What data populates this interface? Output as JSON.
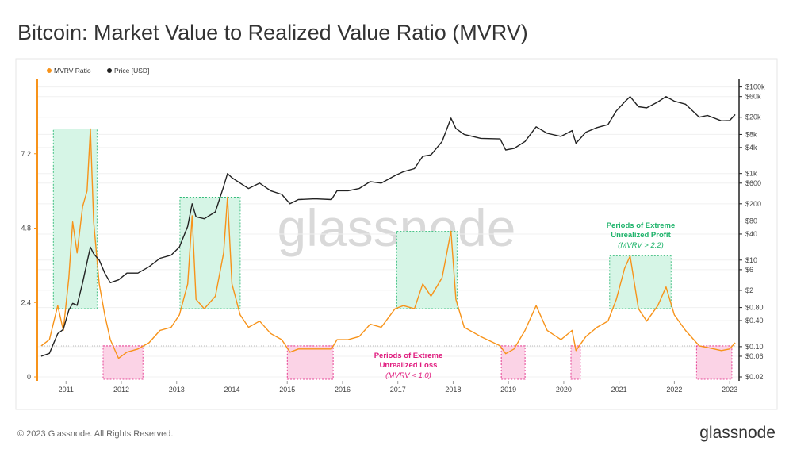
{
  "chart_data": {
    "type": "line",
    "title": "Bitcoin: Market Value to Realized Value Ratio (MVRV)",
    "watermark": "glassnode",
    "footer": "© 2023 Glassnode. All Rights Reserved.",
    "logo": "glassnode",
    "x": [
      2010.55,
      2010.7,
      2010.85,
      2010.95,
      2011.05,
      2011.12,
      2011.2,
      2011.3,
      2011.38,
      2011.44,
      2011.5,
      2011.6,
      2011.7,
      2011.8,
      2011.95,
      2012.1,
      2012.3,
      2012.5,
      2012.7,
      2012.9,
      2013.05,
      2013.2,
      2013.28,
      2013.35,
      2013.5,
      2013.7,
      2013.85,
      2013.92,
      2014.0,
      2014.15,
      2014.3,
      2014.5,
      2014.7,
      2014.9,
      2015.05,
      2015.2,
      2015.5,
      2015.8,
      2015.9,
      2016.1,
      2016.3,
      2016.5,
      2016.7,
      2016.95,
      2017.1,
      2017.3,
      2017.45,
      2017.6,
      2017.8,
      2017.96,
      2018.05,
      2018.2,
      2018.5,
      2018.85,
      2018.95,
      2019.1,
      2019.3,
      2019.5,
      2019.7,
      2019.95,
      2020.15,
      2020.22,
      2020.4,
      2020.6,
      2020.8,
      2020.95,
      2021.1,
      2021.2,
      2021.35,
      2021.5,
      2021.7,
      2021.85,
      2022.0,
      2022.2,
      2022.45,
      2022.6,
      2022.85,
      2023.0,
      2023.1
    ],
    "series": [
      {
        "name": "MVRV Ratio",
        "color": "#f7931a",
        "values": [
          1.0,
          1.2,
          2.3,
          1.5,
          3.2,
          5.0,
          4.0,
          5.5,
          6.0,
          8.0,
          5.0,
          3.0,
          2.0,
          1.2,
          0.6,
          0.8,
          0.9,
          1.1,
          1.5,
          1.6,
          2.0,
          3.0,
          5.2,
          2.5,
          2.2,
          2.6,
          4.0,
          5.8,
          3.0,
          2.0,
          1.6,
          1.8,
          1.4,
          1.2,
          0.8,
          0.9,
          0.9,
          0.9,
          1.2,
          1.2,
          1.3,
          1.7,
          1.6,
          2.2,
          2.3,
          2.2,
          3.0,
          2.6,
          3.2,
          4.7,
          2.5,
          1.6,
          1.3,
          1.0,
          0.75,
          0.9,
          1.5,
          2.3,
          1.5,
          1.2,
          1.5,
          0.85,
          1.3,
          1.6,
          1.8,
          2.5,
          3.5,
          3.9,
          2.2,
          1.8,
          2.3,
          2.9,
          2.0,
          1.5,
          1.0,
          0.95,
          0.85,
          0.9,
          1.1
        ]
      },
      {
        "name": "Price [USD]",
        "color": "#222222",
        "axis": "y2",
        "values": [
          0.06,
          0.07,
          0.2,
          0.25,
          0.7,
          1.0,
          0.9,
          3,
          9,
          20,
          14,
          10,
          5,
          3,
          3.5,
          5,
          5,
          7,
          11,
          13,
          20,
          60,
          200,
          100,
          90,
          130,
          500,
          1000,
          800,
          600,
          450,
          600,
          400,
          330,
          200,
          250,
          260,
          250,
          400,
          400,
          450,
          650,
          600,
          900,
          1100,
          1300,
          2500,
          2700,
          5500,
          19000,
          11000,
          8000,
          6500,
          6300,
          3500,
          3800,
          5500,
          12000,
          8500,
          7200,
          9800,
          5000,
          9000,
          11500,
          13500,
          28000,
          45000,
          60000,
          35000,
          33000,
          45000,
          60000,
          47000,
          40000,
          20000,
          22000,
          16500,
          16800,
          23000
        ]
      }
    ],
    "xlim": [
      2010.48,
      2023.17
    ],
    "xticks": [
      2011,
      2012,
      2013,
      2014,
      2015,
      2016,
      2017,
      2018,
      2019,
      2020,
      2021,
      2022,
      2023
    ],
    "ylim": [
      0,
      9.6
    ],
    "yticks": [
      0,
      2.4,
      4.8,
      7.2
    ],
    "y2scale": "log",
    "y2lim": [
      0.02,
      150000
    ],
    "y2ticks": [
      {
        "value": 0.02,
        "label": "$0.02"
      },
      {
        "value": 0.06,
        "label": "$0.06"
      },
      {
        "value": 0.1,
        "label": "$0.10"
      },
      {
        "value": 0.4,
        "label": "$0.40"
      },
      {
        "value": 0.8,
        "label": "$0.80"
      },
      {
        "value": 2,
        "label": "$2"
      },
      {
        "value": 6,
        "label": "$6"
      },
      {
        "value": 10,
        "label": "$10"
      },
      {
        "value": 40,
        "label": "$40"
      },
      {
        "value": 80,
        "label": "$80"
      },
      {
        "value": 200,
        "label": "$200"
      },
      {
        "value": 600,
        "label": "$600"
      },
      {
        "value": 1000,
        "label": "$1k"
      },
      {
        "value": 4000,
        "label": "$4k"
      },
      {
        "value": 8000,
        "label": "$8k"
      },
      {
        "value": 20000,
        "label": "$20k"
      },
      {
        "value": 60000,
        "label": "$60k"
      },
      {
        "value": 100000,
        "label": "$100k"
      }
    ],
    "grid": true,
    "legend": "top-left",
    "annotations": [
      {
        "label": [
          "Periods of Extreme",
          "Unrealized Profit"
        ],
        "note": "(MVRV > 2.2)",
        "color": "#1db36a",
        "fill": "#d6f5e6",
        "threshold": 2.2,
        "side": "above",
        "periods": [
          [
            2010.77,
            2011.56
          ],
          [
            2013.06,
            2014.15
          ],
          [
            2016.98,
            2018.07
          ],
          [
            2020.83,
            2021.94
          ]
        ]
      },
      {
        "label": [
          "Periods of Extreme",
          "Unrealized Loss"
        ],
        "note": "(MVRV < 1.0)",
        "color": "#e0197d",
        "fill": "#fbd3e6",
        "threshold": 1.0,
        "side": "below",
        "periods": [
          [
            2011.67,
            2012.39
          ],
          [
            2015.0,
            2015.83
          ],
          [
            2018.87,
            2019.3
          ],
          [
            2020.13,
            2020.3
          ],
          [
            2022.4,
            2023.04
          ]
        ]
      }
    ]
  }
}
